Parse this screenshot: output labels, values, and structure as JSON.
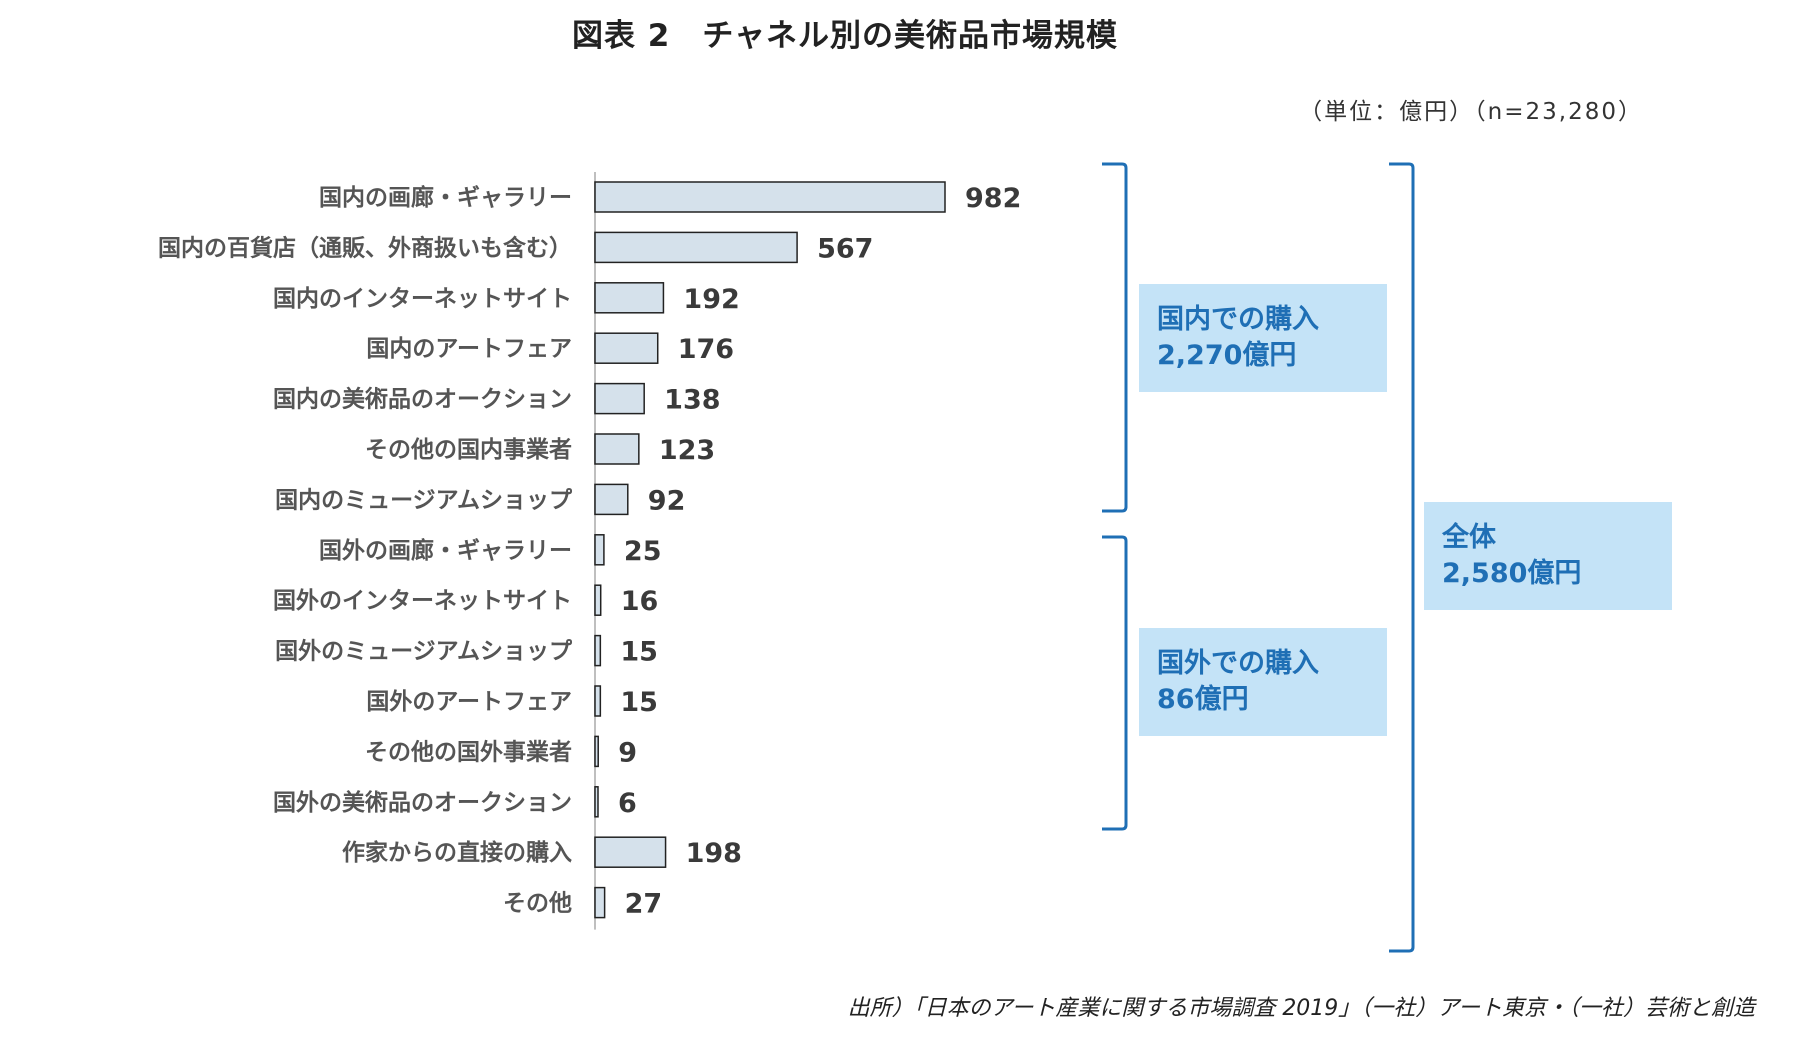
{
  "title": "図表 2　チャネル別の美術品市場規模",
  "unit": "（単位：億円）（n=23,280）",
  "source": "出所）「日本のアート産業に関する市場調査 2019」（一社）アート東京・（一社）芸術と創造",
  "chart_data": {
    "type": "bar",
    "orientation": "horizontal",
    "categories": [
      "国内の画廊・ギャラリー",
      "国内の百貨店（通販、外商扱いも含む）",
      "国内のインターネットサイト",
      "国内のアートフェア",
      "国内の美術品のオークション",
      "その他の国内事業者",
      "国内のミュージアムショップ",
      "国外の画廊・ギャラリー",
      "国外のインターネットサイト",
      "国外のミュージアムショップ",
      "国外のアートフェア",
      "その他の国外事業者",
      "国外の美術品のオークション",
      "作家からの直接の購入",
      "その他"
    ],
    "values": [
      982,
      567,
      192,
      176,
      138,
      123,
      92,
      25,
      16,
      15,
      15,
      9,
      6,
      198,
      27
    ],
    "bar_color": "#d5e1eb",
    "bar_stroke": "#222222"
  },
  "groups": {
    "domestic": {
      "line1": "国内での購入",
      "line2": "2,270億円"
    },
    "overseas": {
      "line1": "国外での購入",
      "line2": "86億円"
    },
    "total": {
      "line1": "全体",
      "line2": "2,580億円"
    }
  },
  "colors": {
    "bracket": "#1f6fb5",
    "box_bg": "#c4e3f7",
    "box_text": "#1f6fb5"
  }
}
